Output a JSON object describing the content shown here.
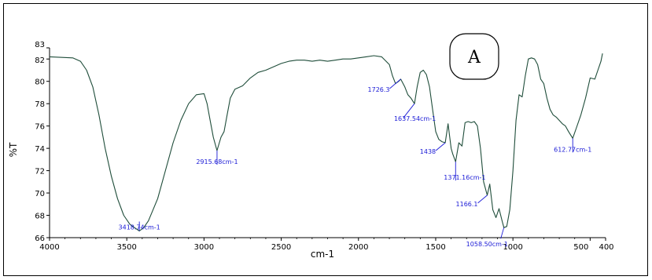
{
  "chart_data": {
    "type": "line",
    "title": "",
    "panel_label": "A",
    "xlabel": "cm-1",
    "ylabel": "%T",
    "xlim": [
      4000,
      400
    ],
    "ylim": [
      66,
      83
    ],
    "x_ticks": [
      4000,
      3500,
      3000,
      2500,
      2000,
      1500,
      1000,
      500,
      400
    ],
    "y_ticks": [
      66,
      68,
      70,
      72,
      74,
      76,
      78,
      80,
      82,
      83
    ],
    "grid": false,
    "colors": {
      "line": "#1f4d3a",
      "annotation": "#1a1ad6"
    },
    "series": [
      {
        "x": [
          4000,
          3850,
          3800,
          3760,
          3720,
          3680,
          3640,
          3600,
          3560,
          3520,
          3480,
          3450,
          3418.74,
          3390,
          3360,
          3330,
          3300,
          3250,
          3200,
          3150,
          3100,
          3050,
          3000,
          2980,
          2960,
          2940,
          2915.68,
          2890,
          2870,
          2850,
          2830,
          2800,
          2750,
          2700,
          2650,
          2600,
          2500,
          2450,
          2400,
          2350,
          2300,
          2250,
          2200,
          2150,
          2100,
          2050,
          2000,
          1950,
          1900,
          1850,
          1800,
          1780,
          1760,
          1740,
          1726.3,
          1700,
          1680,
          1660,
          1637.54,
          1620,
          1600,
          1580,
          1560,
          1540,
          1520,
          1500,
          1480,
          1460,
          1438,
          1420,
          1400,
          1390,
          1371.16,
          1350,
          1330,
          1310,
          1290,
          1270,
          1250,
          1230,
          1210,
          1190,
          1166.1,
          1150,
          1130,
          1110,
          1090,
          1070,
          1058.5,
          1040,
          1020,
          1000,
          980,
          960,
          940,
          920,
          900,
          880,
          860,
          840,
          820,
          800,
          780,
          760,
          740,
          720,
          700,
          680,
          660,
          640,
          612.77,
          590,
          560,
          530,
          500,
          470,
          450,
          430,
          420
        ],
        "y": [
          82.2,
          82.1,
          81.8,
          81.0,
          79.5,
          77.0,
          74.0,
          71.5,
          69.5,
          68.0,
          67.2,
          66.9,
          66.6,
          66.9,
          67.5,
          68.5,
          69.5,
          72.0,
          74.5,
          76.5,
          78.0,
          78.8,
          78.9,
          78.0,
          76.5,
          75.0,
          73.8,
          75.0,
          75.5,
          77.0,
          78.5,
          79.3,
          79.6,
          80.3,
          80.8,
          81.0,
          81.6,
          81.8,
          81.9,
          81.9,
          81.8,
          81.9,
          81.8,
          81.9,
          82.0,
          82.0,
          82.1,
          82.2,
          82.3,
          82.2,
          81.5,
          80.5,
          79.8,
          80.0,
          80.2,
          79.5,
          78.8,
          78.5,
          78.0,
          79.5,
          80.8,
          81.0,
          80.6,
          79.5,
          77.5,
          75.5,
          74.8,
          74.6,
          74.5,
          76.2,
          74.0,
          73.5,
          72.8,
          74.5,
          74.2,
          76.3,
          76.4,
          76.3,
          76.4,
          76.0,
          74.0,
          71.0,
          69.8,
          70.8,
          68.5,
          67.8,
          68.6,
          67.5,
          66.9,
          67.0,
          68.5,
          72.0,
          76.5,
          78.8,
          78.6,
          80.5,
          82.0,
          82.1,
          82.0,
          81.5,
          80.2,
          79.8,
          78.5,
          77.5,
          77.0,
          76.8,
          76.5,
          76.2,
          76.0,
          75.5,
          74.9,
          75.8,
          77.0,
          78.5,
          80.3,
          80.2,
          81.0,
          81.8,
          82.5
        ]
      }
    ],
    "annotations": [
      {
        "label": "3418.74cm-1",
        "x": 3418.74,
        "y": 66.6
      },
      {
        "label": "2915.68cm-1",
        "x": 2915.68,
        "y": 73.8
      },
      {
        "label": "1726.3",
        "x": 1726.3,
        "y": 80.2
      },
      {
        "label": "1637.54cm-1",
        "x": 1637.54,
        "y": 78.0
      },
      {
        "label": "1438",
        "x": 1438,
        "y": 74.5
      },
      {
        "label": "1371.16cm-1",
        "x": 1371.16,
        "y": 72.8
      },
      {
        "label": "1166.1",
        "x": 1166.1,
        "y": 69.8
      },
      {
        "label": "1058.50cm-1",
        "x": 1058.5,
        "y": 66.9
      },
      {
        "label": "612.77cm-1",
        "x": 612.77,
        "y": 74.9
      }
    ]
  }
}
